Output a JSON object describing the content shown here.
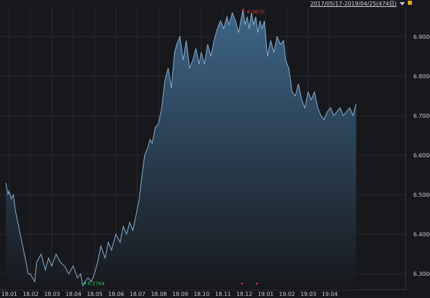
{
  "toolbar": {
    "date_range_label": "2017/05/17-2019/04/25(474日)",
    "dropdown_icon": "triangle-down-icon",
    "lock_icon": "lock-icon",
    "lock_color": "#e6a817"
  },
  "chart_data": {
    "type": "area",
    "title": "",
    "xlabel": "",
    "ylabel": "",
    "ylim": [
      6.26,
      6.975
    ],
    "grid": true,
    "line_color": "#8ab4d8",
    "fill_top_color": "#3d6687",
    "fill_bottom_color": "#17181c",
    "y_ticks": [
      "6.3000",
      "6.4000",
      "6.5000",
      "6.6000",
      "6.7000",
      "6.8000",
      "6.9000"
    ],
    "x_ticks": [
      "18.01",
      "18.02",
      "18.03",
      "18.04",
      "18.05",
      "18.06",
      "18.07",
      "18.08",
      "18.09",
      "18.10",
      "18.11",
      "18.12",
      "19.01",
      "19.02",
      "19.03",
      "19.04"
    ],
    "max_point": {
      "label": "6.9670",
      "x": 10.95,
      "y": 6.967,
      "color": "#e8333b"
    },
    "min_point": {
      "label": "6.2764",
      "x": 3.55,
      "y": 6.2764,
      "color": "#22c55e"
    },
    "event_markers": [
      {
        "x": 10.9,
        "color": "#e8333b"
      },
      {
        "x": 11.6,
        "color": "#e8333b"
      }
    ],
    "series": [
      {
        "x": [
          -0.15,
          -0.05,
          0.0,
          0.1,
          0.2,
          0.3,
          0.45,
          0.6,
          0.8,
          0.9,
          1.0,
          1.2,
          1.3,
          1.5,
          1.7,
          1.85,
          2.0,
          2.2,
          2.4,
          2.6,
          2.8,
          3.0,
          3.2,
          3.35,
          3.45,
          3.55,
          3.7,
          3.85,
          4.0,
          4.15,
          4.3,
          4.5,
          4.65,
          4.8,
          5.0,
          5.2,
          5.35,
          5.5,
          5.65,
          5.8,
          5.95,
          6.1,
          6.2,
          6.35,
          6.5,
          6.6,
          6.7,
          6.85,
          7.0,
          7.15,
          7.3,
          7.45,
          7.6,
          7.75,
          7.85,
          8.0,
          8.15,
          8.3,
          8.45,
          8.6,
          8.75,
          8.9,
          9.0,
          9.15,
          9.3,
          9.45,
          9.6,
          9.75,
          9.9,
          10.05,
          10.2,
          10.3,
          10.45,
          10.6,
          10.75,
          10.85,
          10.95,
          11.05,
          11.15,
          11.25,
          11.35,
          11.45,
          11.55,
          11.65,
          11.75,
          11.85,
          11.95,
          12.1,
          12.25,
          12.4,
          12.55,
          12.7,
          12.85,
          12.95,
          13.1,
          13.25,
          13.4,
          13.55,
          13.7,
          13.85,
          14.0,
          14.15,
          14.3,
          14.45,
          14.6,
          14.75,
          14.9,
          15.05,
          15.2,
          15.35,
          15.5,
          15.65,
          15.8,
          15.95,
          16.1,
          16.25
        ],
        "y": [
          6.53,
          6.5,
          6.51,
          6.49,
          6.5,
          6.46,
          6.42,
          6.38,
          6.33,
          6.3,
          6.3,
          6.28,
          6.33,
          6.35,
          6.31,
          6.34,
          6.32,
          6.35,
          6.33,
          6.32,
          6.3,
          6.32,
          6.29,
          6.3,
          6.27,
          6.28,
          6.29,
          6.28,
          6.3,
          6.33,
          6.37,
          6.34,
          6.38,
          6.36,
          6.4,
          6.38,
          6.42,
          6.4,
          6.43,
          6.41,
          6.45,
          6.49,
          6.54,
          6.6,
          6.62,
          6.64,
          6.63,
          6.67,
          6.68,
          6.72,
          6.79,
          6.82,
          6.77,
          6.86,
          6.88,
          6.9,
          6.84,
          6.89,
          6.82,
          6.84,
          6.87,
          6.83,
          6.86,
          6.83,
          6.88,
          6.85,
          6.89,
          6.92,
          6.94,
          6.92,
          6.95,
          6.93,
          6.96,
          6.94,
          6.91,
          6.94,
          6.967,
          6.93,
          6.95,
          6.92,
          6.96,
          6.93,
          6.95,
          6.91,
          6.94,
          6.92,
          6.94,
          6.85,
          6.89,
          6.86,
          6.9,
          6.88,
          6.89,
          6.84,
          6.82,
          6.76,
          6.75,
          6.78,
          6.74,
          6.72,
          6.76,
          6.74,
          6.76,
          6.72,
          6.7,
          6.69,
          6.71,
          6.72,
          6.7,
          6.71,
          6.72,
          6.7,
          6.71,
          6.72,
          6.7,
          6.73
        ]
      }
    ]
  }
}
